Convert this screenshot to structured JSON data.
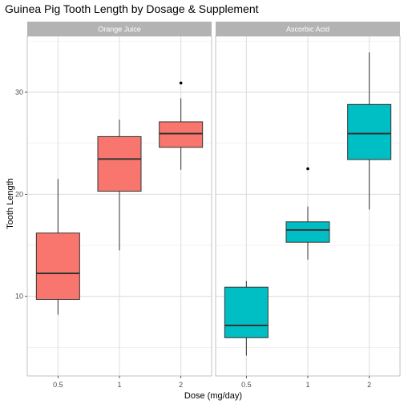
{
  "chart_data": {
    "type": "boxplot",
    "title": "Guinea Pig Tooth Length by Dosage & Supplement",
    "xlabel": "Dose (mg/day)",
    "ylabel": "Tooth Length",
    "categories": [
      "0.5",
      "1",
      "2"
    ],
    "yticks": [
      10,
      20,
      30
    ],
    "ylim": [
      2.2,
      35.5
    ],
    "grid": true,
    "facets": [
      {
        "label": "Orange Juice",
        "color": "#F8766D",
        "boxes": [
          {
            "category": "0.5",
            "whisker_low": 8.2,
            "q1": 9.7,
            "median": 12.25,
            "q3": 16.2,
            "whisker_high": 21.5,
            "outliers": []
          },
          {
            "category": "1",
            "whisker_low": 14.5,
            "q1": 20.3,
            "median": 23.45,
            "q3": 25.65,
            "whisker_high": 27.3,
            "outliers": []
          },
          {
            "category": "2",
            "whisker_low": 22.4,
            "q1": 24.6,
            "median": 25.95,
            "q3": 27.1,
            "whisker_high": 29.4,
            "outliers": [
              30.9
            ]
          }
        ]
      },
      {
        "label": "Ascorbic Acid",
        "color": "#00BFC4",
        "boxes": [
          {
            "category": "0.5",
            "whisker_low": 4.2,
            "q1": 5.95,
            "median": 7.15,
            "q3": 10.9,
            "whisker_high": 11.5,
            "outliers": []
          },
          {
            "category": "1",
            "whisker_low": 13.6,
            "q1": 15.3,
            "median": 16.5,
            "q3": 17.3,
            "whisker_high": 18.8,
            "outliers": [
              22.5
            ]
          },
          {
            "category": "2",
            "whisker_low": 18.5,
            "q1": 23.4,
            "median": 25.95,
            "q3": 28.8,
            "whisker_high": 33.9,
            "outliers": []
          }
        ]
      }
    ]
  }
}
